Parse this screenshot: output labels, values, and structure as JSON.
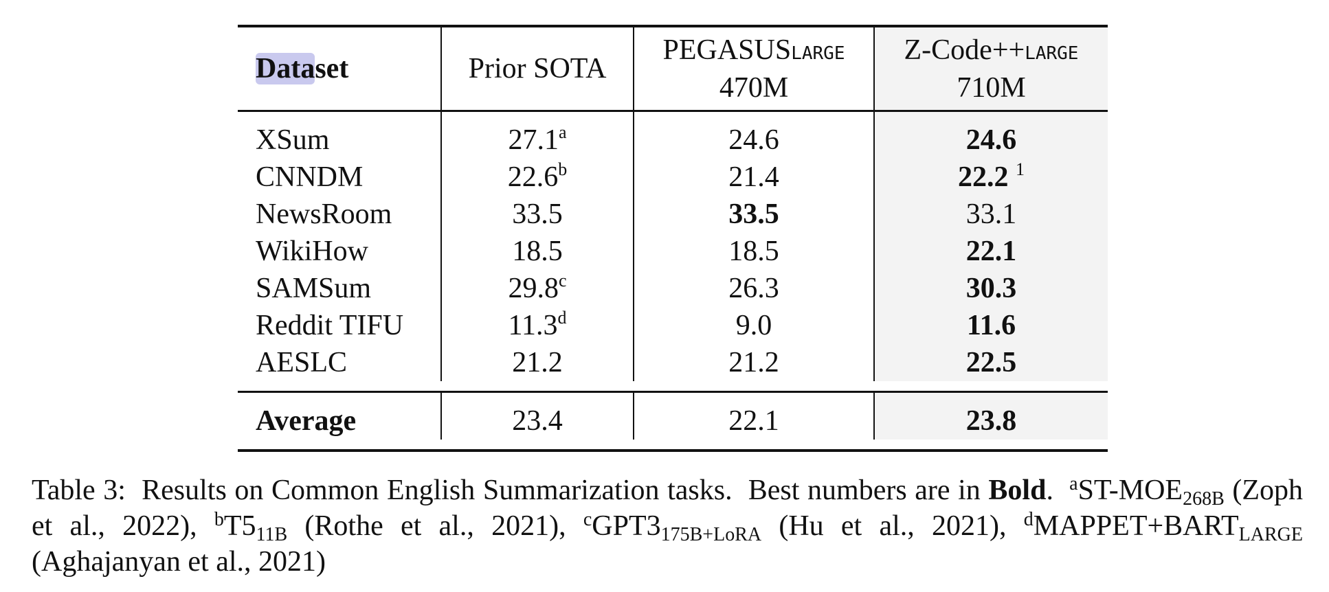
{
  "table": {
    "header": {
      "dataset": "Dataset",
      "dataset_highlight": "Data",
      "dataset_rest": "set",
      "prior": "Prior SOTA",
      "pegasus_name": "PEGASUS",
      "pegasus_sub": "LARGE",
      "pegasus_size": "470M",
      "zcode_name": "Z-Code++",
      "zcode_sub": "LARGE",
      "zcode_size": "710M"
    },
    "rows": [
      {
        "name": "XSum",
        "prior": "27.1",
        "prior_sup": "a",
        "pegasus": "24.6",
        "zcode": "24.6",
        "zcode_sup": ""
      },
      {
        "name": "CNNDM",
        "prior": "22.6",
        "prior_sup": "b",
        "pegasus": "21.4",
        "zcode": "22.2",
        "zcode_sup": "1"
      },
      {
        "name": "NewsRoom",
        "prior": "33.5",
        "prior_sup": "",
        "pegasus": "33.5",
        "zcode": "33.1",
        "zcode_sup": ""
      },
      {
        "name": "WikiHow",
        "prior": "18.5",
        "prior_sup": "",
        "pegasus": "18.5",
        "zcode": "22.1",
        "zcode_sup": ""
      },
      {
        "name": "SAMSum",
        "prior": "29.8",
        "prior_sup": "c",
        "pegasus": "26.3",
        "zcode": "30.3",
        "zcode_sup": ""
      },
      {
        "name": "Reddit TIFU",
        "prior": "11.3",
        "prior_sup": "d",
        "pegasus": "9.0",
        "zcode": "11.6",
        "zcode_sup": ""
      },
      {
        "name": "AESLC",
        "prior": "21.2",
        "prior_sup": "",
        "pegasus": "21.2",
        "zcode": "22.5",
        "zcode_sup": ""
      }
    ],
    "average": {
      "name": "Average",
      "prior": "23.4",
      "pegasus": "22.1",
      "zcode": "23.8"
    }
  },
  "caption": {
    "label": "Table 3:",
    "text1": "Results on Common English Summarization tasks.",
    "text2": "Best numbers are in",
    "bold_word": "Bold",
    "period": ".",
    "ref_a_sup": "a",
    "ref_a_main": "ST-MOE",
    "ref_a_sub": "268B",
    "ref_a_cite": "(Zoph et al., 2022),",
    "ref_b_sup": "b",
    "ref_b_main": "T5",
    "ref_b_sub": "11B",
    "ref_b_cite": "(Rothe et al., 2021),",
    "ref_c_sup": "c",
    "ref_c_main": "GPT3",
    "ref_c_sub": "175B+LoRA",
    "ref_c_cite": "(Hu et al., 2021),",
    "ref_d_sup": "d",
    "ref_d_main": "MAPPET+BART",
    "ref_d_sub": "LARGE",
    "ref_d_cite": "(Aghajanyan et al., 2021)"
  }
}
